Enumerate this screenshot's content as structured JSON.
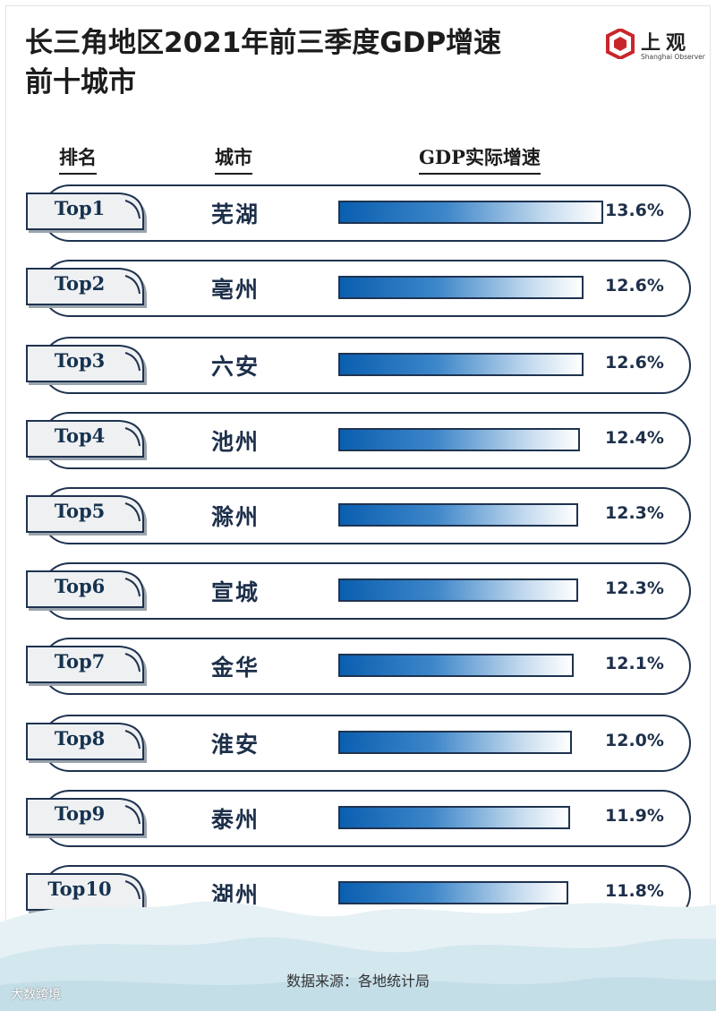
{
  "title": "长三角地区2021年前三季度GDP增速前十城市",
  "logo": {
    "name": "上观",
    "english": "Shanghai Observer"
  },
  "columns": {
    "rank": "排名",
    "city": "城市",
    "gdp": "GDP实际增速"
  },
  "chart_data": {
    "type": "bar",
    "orientation": "horizontal",
    "title": "长三角地区2021年前三季度GDP增速前十城市",
    "ylabel": "城市",
    "xlabel": "GDP实际增速",
    "unit": "%",
    "categories": [
      "芜湖",
      "亳州",
      "六安",
      "池州",
      "滁州",
      "宣城",
      "金华",
      "淮安",
      "泰州",
      "湖州"
    ],
    "values": [
      13.6,
      12.6,
      12.6,
      12.4,
      12.3,
      12.3,
      12.1,
      12.0,
      11.9,
      11.8
    ]
  },
  "rows": [
    {
      "rank": "Top1",
      "city": "芜湖",
      "value": "13.6%"
    },
    {
      "rank": "Top2",
      "city": "亳州",
      "value": "12.6%"
    },
    {
      "rank": "Top3",
      "city": "六安",
      "value": "12.6%"
    },
    {
      "rank": "Top4",
      "city": "池州",
      "value": "12.4%"
    },
    {
      "rank": "Top5",
      "city": "滁州",
      "value": "12.3%"
    },
    {
      "rank": "Top6",
      "city": "宣城",
      "value": "12.3%"
    },
    {
      "rank": "Top7",
      "city": "金华",
      "value": "12.1%"
    },
    {
      "rank": "Top8",
      "city": "淮安",
      "value": "12.0%"
    },
    {
      "rank": "Top9",
      "city": "泰州",
      "value": "11.9%"
    },
    {
      "rank": "Top10",
      "city": "湖州",
      "value": "11.8%"
    }
  ],
  "source": "数据来源：各地统计局",
  "watermark": "大数跨境",
  "colors": {
    "bar_start": "#0a5fb0",
    "bar_end": "#ffffff",
    "outline": "#1f3350",
    "text": "#1d2f4a"
  }
}
